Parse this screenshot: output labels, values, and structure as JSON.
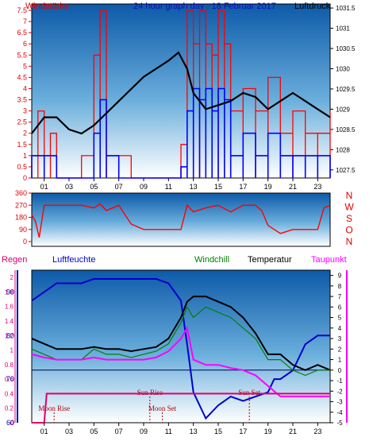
{
  "chart_data": [
    {
      "type": "line",
      "title": "24 hour graph day : 18 Februar 2017",
      "left_axis_label": "Windstärke",
      "right_axis_label": "Luftdruck",
      "x_tick_labels": [
        "01",
        "03",
        "05",
        "07",
        "09",
        "11",
        "13",
        "15",
        "17",
        "19",
        "21",
        "23"
      ],
      "x_tick_hours": [
        1,
        3,
        5,
        7,
        9,
        11,
        13,
        15,
        17,
        19,
        21,
        23
      ],
      "xlim": [
        0,
        24
      ],
      "left_ylim": [
        0,
        7.5
      ],
      "left_ticks": [
        "0",
        "0.5",
        "1",
        "1.5",
        "2",
        "2.5",
        "3",
        "3.5",
        "4",
        "4.5",
        "5",
        "5.5",
        "6",
        "6.5",
        "7",
        "7.5"
      ],
      "right_ylim": [
        1027.3,
        1031.6
      ],
      "right_ticks": [
        "1027.5",
        "1028",
        "1028.5",
        "1029",
        "1029.5",
        "1030",
        "1030.5",
        "1031",
        "1031.5"
      ],
      "series": [
        {
          "color": "#000000",
          "hours": [
            0,
            1,
            2,
            3,
            4,
            5,
            6,
            7,
            8,
            9,
            10,
            11,
            11.8,
            12.5,
            13,
            14,
            15,
            16,
            17,
            18,
            19,
            20,
            21,
            22,
            23,
            24
          ],
          "values": [
            1028.4,
            1028.8,
            1028.8,
            1028.5,
            1028.4,
            1028.6,
            1028.9,
            1029.2,
            1029.5,
            1029.8,
            1030.0,
            1030.2,
            1030.4,
            1030.0,
            1029.4,
            1029.0,
            1029.1,
            1029.2,
            1029.4,
            1029.3,
            1029.0,
            1029.2,
            1029.4,
            1029.2,
            1029.0,
            1028.8
          ]
        },
        {
          "color": "#ff0000",
          "hours": [
            0,
            0.5,
            1,
            1.5,
            2,
            3,
            4,
            5,
            5.5,
            6,
            7,
            8,
            9,
            10,
            11,
            12,
            12.5,
            13,
            13.5,
            14,
            14.5,
            15,
            15.5,
            16,
            17,
            18,
            19,
            20,
            21,
            22,
            23,
            24
          ],
          "values": [
            1,
            3,
            1,
            2,
            0,
            0,
            1,
            5.5,
            7.5,
            1,
            1,
            0,
            0,
            0,
            0,
            1.5,
            7.5,
            6,
            7.5,
            6,
            5.5,
            7.5,
            6,
            3,
            4,
            3,
            4.5,
            2,
            3,
            2,
            2,
            3
          ]
        },
        {
          "color": "#0000ff",
          "hours": [
            0,
            1,
            2,
            3,
            4,
            5,
            5.5,
            6,
            7,
            8,
            9,
            10,
            11,
            12,
            12.5,
            13,
            13.5,
            14,
            14.5,
            15,
            15.5,
            16,
            17,
            18,
            19,
            20,
            21,
            22,
            23,
            24
          ],
          "values": [
            1,
            1,
            0,
            0,
            0,
            2,
            3.5,
            1,
            0,
            0,
            0,
            0,
            0,
            0.5,
            3,
            4,
            3.5,
            4,
            3,
            4,
            3.5,
            1,
            2,
            1,
            2,
            1,
            1,
            1,
            1,
            1
          ]
        }
      ]
    },
    {
      "type": "scatter",
      "left_ylim": [
        0,
        360
      ],
      "left_ticks": [
        "0",
        "90",
        "180",
        "270",
        "360"
      ],
      "right_labels": [
        "N",
        "W",
        "S",
        "O",
        "N"
      ],
      "series": [
        {
          "color": "#ff0000",
          "hours": [
            0,
            0.3,
            0.6,
            1,
            1.5,
            2,
            3,
            4,
            5,
            5.5,
            6,
            7,
            8,
            9,
            10,
            11,
            12,
            12.5,
            13,
            14,
            15,
            16,
            17,
            18,
            18.5,
            19,
            20,
            21,
            22,
            23,
            23.5,
            24
          ],
          "values": [
            200,
            150,
            30,
            270,
            270,
            270,
            270,
            270,
            250,
            280,
            230,
            270,
            130,
            90,
            90,
            90,
            90,
            270,
            220,
            250,
            270,
            220,
            270,
            270,
            230,
            120,
            60,
            90,
            90,
            90,
            250,
            270
          ]
        }
      ]
    },
    {
      "type": "line",
      "legend": [
        "Regen",
        "Luftfeuchte",
        "Windchill",
        "Temperatur",
        "Taupunkt"
      ],
      "legend_colors": [
        "#e0006e",
        "#0000cc",
        "#008000",
        "#000000",
        "#ff00ff"
      ],
      "left_axis_values": [
        "0",
        "0.2",
        "0.4",
        "0.6",
        "0.8",
        "1",
        "1.2",
        "1.4",
        "1.6",
        "1.8",
        "2"
      ],
      "humidity_axis_values": [
        "60",
        "70",
        "80",
        "90"
      ],
      "humidity_ylim": [
        60,
        95
      ],
      "temperature_axis_values": [
        "-5",
        "-4",
        "-3",
        "-2",
        "-1",
        "0",
        "1",
        "2",
        "3",
        "4",
        "5",
        "6",
        "7",
        "8",
        "9"
      ],
      "temperature_ylim": [
        -5,
        9.5
      ],
      "annotations": [
        "Moon Rise",
        "Sun Rise",
        "Moon Set",
        "Sun Set"
      ],
      "annotation_hours": [
        1.8,
        9.5,
        10.5,
        17.5
      ],
      "x_tick_labels": [
        "01",
        "03",
        "05",
        "07",
        "09",
        "11",
        "13",
        "15",
        "17",
        "19",
        "21",
        "23"
      ],
      "series": [
        {
          "color": "#0000cc",
          "hours": [
            0,
            1,
            2,
            3,
            4,
            5,
            6,
            7,
            8,
            9,
            10,
            11,
            12,
            12.5,
            13,
            14,
            15,
            16,
            17,
            18,
            19,
            19.5,
            20,
            21,
            22,
            23,
            24
          ],
          "values": [
            88,
            90,
            92,
            92,
            92,
            93,
            93,
            93,
            93,
            93,
            93,
            92,
            88,
            78,
            67,
            61,
            64,
            66,
            65,
            66,
            67,
            70,
            70,
            72,
            78,
            80,
            80
          ]
        },
        {
          "color": "#000000",
          "hours": [
            0,
            1,
            2,
            3,
            4,
            5,
            6,
            7,
            8,
            9,
            10,
            11,
            12,
            12.5,
            13,
            14,
            15,
            16,
            17,
            18,
            19,
            20,
            21,
            22,
            23,
            24
          ],
          "values": [
            3,
            2.5,
            2,
            2,
            2,
            2.2,
            2,
            2,
            1.8,
            2,
            2.2,
            3,
            5,
            6.5,
            7,
            7,
            6.5,
            6,
            5,
            3.5,
            1.5,
            1.5,
            0.5,
            0,
            0.5,
            0
          ]
        },
        {
          "color": "#008000",
          "hours": [
            0,
            1,
            2,
            3,
            4,
            5,
            6,
            7,
            8,
            9,
            10,
            11,
            12,
            12.5,
            13,
            14,
            15,
            16,
            17,
            18,
            19,
            20,
            21,
            22,
            23,
            24
          ],
          "values": [
            2,
            1.5,
            1,
            1,
            1,
            2,
            1.5,
            1.5,
            1.2,
            1.5,
            1.8,
            2.5,
            4.5,
            6,
            5,
            6,
            5.5,
            5,
            4,
            3,
            1,
            1,
            0,
            -0.5,
            0,
            0
          ]
        },
        {
          "color": "#ff00ff",
          "hours": [
            0,
            1,
            2,
            3,
            4,
            5,
            6,
            7,
            8,
            9,
            10,
            11,
            12,
            12.5,
            13,
            14,
            15,
            16,
            17,
            18,
            19,
            20,
            21,
            22,
            23,
            24
          ],
          "values": [
            1.5,
            1.2,
            1,
            1,
            1,
            1.2,
            1,
            1,
            1,
            1,
            1.2,
            1.8,
            3,
            4,
            1,
            0.5,
            0.5,
            0.2,
            0,
            -0.5,
            -1.5,
            -2.5,
            -2.5,
            -2.5,
            -2.5,
            -2.5
          ]
        },
        {
          "color": "#e0006e",
          "hours": [
            0,
            1,
            1.2,
            3,
            4,
            5,
            6,
            7,
            8,
            9,
            10,
            11,
            12,
            13,
            14,
            15,
            16,
            17,
            18,
            19,
            20,
            21,
            22,
            23,
            24
          ],
          "values": [
            0,
            0,
            0.4,
            0.4,
            0.4,
            0.4,
            0.4,
            0.4,
            0.4,
            0.4,
            0.4,
            0.4,
            0.4,
            0.4,
            0.4,
            0.4,
            0.4,
            0.4,
            0.4,
            0.4,
            0.4,
            0.4,
            0.4,
            0.4,
            0.4
          ]
        }
      ]
    }
  ]
}
